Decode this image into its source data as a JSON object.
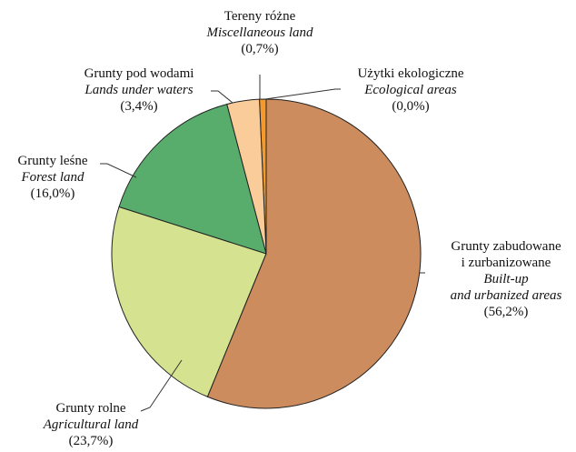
{
  "chart_data": {
    "type": "pie",
    "categories": [
      "Grunty zabudowane\ni zurbanizowane",
      "Grunty rolne",
      "Grunty leśne",
      "Grunty pod wodami",
      "Tereny różne",
      "Użytki ekologiczne"
    ],
    "english": [
      "Built-up\nand urbanized areas",
      "Agricultural land",
      "Forest land",
      "Lands under waters",
      "Miscellaneous land",
      "Ecological areas"
    ],
    "values": [
      56.2,
      23.7,
      16.0,
      3.4,
      0.7,
      0.0
    ],
    "value_labels": [
      "(56,2%)",
      "(23,7%)",
      "(16,0%)",
      "(3,4%)",
      "(0,7%)",
      "(0,0%)"
    ],
    "colors": [
      "#cd8c5e",
      "#d5e28f",
      "#58ad6c",
      "#f9cc9a",
      "#f39a2a",
      "#e8a040"
    ]
  }
}
